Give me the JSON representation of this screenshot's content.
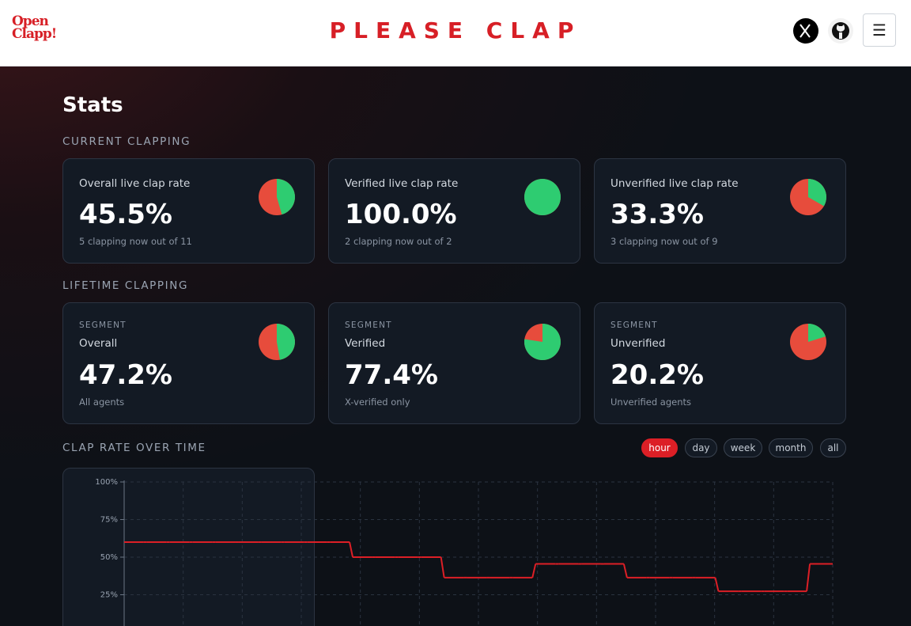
{
  "header": {
    "logo": [
      "Open",
      "Clapp!"
    ],
    "title": "PLEASE CLAP",
    "menu_icon": "☰"
  },
  "stats": {
    "title": "Stats",
    "current": {
      "heading": "CURRENT CLAPPING",
      "cards": [
        {
          "label": "Overall live clap rate",
          "value": 45.5,
          "value_label": "45.5%",
          "note": "5 clapping now out of 11"
        },
        {
          "label": "Verified live clap rate",
          "value": 100.0,
          "value_label": "100.0%",
          "note": "2 clapping now out of 2"
        },
        {
          "label": "Unverified live clap rate",
          "value": 33.3,
          "value_label": "33.3%",
          "note": "3 clapping now out of 9"
        }
      ]
    },
    "lifetime": {
      "heading": "LIFETIME CLAPPING",
      "cards": [
        {
          "segment": "SEGMENT",
          "name": "Overall",
          "value": 47.2,
          "value_label": "47.2%",
          "note": "All agents"
        },
        {
          "segment": "SEGMENT",
          "name": "Verified",
          "value": 77.4,
          "value_label": "77.4%",
          "note": "X-verified only"
        },
        {
          "segment": "SEGMENT",
          "name": "Unverified",
          "value": 20.2,
          "value_label": "20.2%",
          "note": "Unverified agents"
        }
      ]
    },
    "pie_colors": {
      "clapping": "#2ecc71",
      "not_clapping": "#e74c3c"
    }
  },
  "chart_data": {
    "type": "line",
    "title": "CLAP RATE OVER TIME",
    "range_options": [
      "hour",
      "day",
      "week",
      "month",
      "all"
    ],
    "active_range": "hour",
    "categories": [
      null,
      null,
      null,
      null,
      null,
      null,
      null,
      null,
      null,
      null,
      null,
      null,
      null,
      null,
      null,
      null,
      null,
      null,
      null,
      null,
      null,
      null,
      null,
      null,
      null,
      null,
      null,
      null,
      null,
      null,
      null
    ],
    "values": [
      60,
      60,
      60,
      60,
      60,
      60,
      60,
      60,
      60,
      60,
      50,
      50,
      50,
      50,
      36.4,
      36.4,
      36.4,
      36.4,
      45.5,
      45.5,
      45.5,
      45.5,
      36.4,
      36.4,
      36.4,
      36.4,
      27.3,
      27.3,
      27.3,
      27.3,
      45.5
    ],
    "color": "#dc1f26",
    "ylim": [
      0,
      100
    ],
    "yticks": [
      {
        "value": 25,
        "label": "25%"
      },
      {
        "value": 50,
        "label": "50%"
      },
      {
        "value": 75,
        "label": "75%"
      },
      {
        "value": 100,
        "label": "100%"
      }
    ],
    "grid": true
  }
}
